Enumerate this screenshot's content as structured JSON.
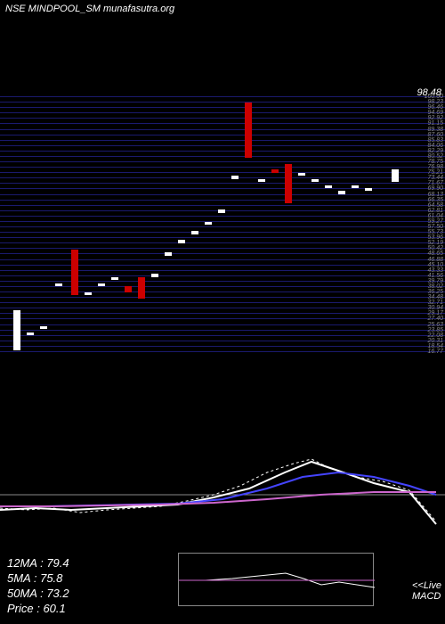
{
  "header": {
    "title": "NSE MINDPOOL_SM munafasutra.org"
  },
  "top_value": "98.48",
  "price_chart": {
    "type": "candlestick",
    "background_color": "#000000",
    "grid_color": "#1a1a6e",
    "grid_count": 48,
    "ylim": [
      15,
      100
    ],
    "candles": [
      {
        "x": 15,
        "open": 17,
        "close": 30,
        "color": "#ffffff"
      },
      {
        "x": 30,
        "open": 22,
        "close": 23,
        "color": "#ffffff"
      },
      {
        "x": 45,
        "open": 24,
        "close": 25,
        "color": "#ffffff"
      },
      {
        "x": 62,
        "open": 38,
        "close": 39,
        "color": "#ffffff"
      },
      {
        "x": 80,
        "open": 35,
        "close": 50,
        "color": "#cc0000"
      },
      {
        "x": 95,
        "open": 35,
        "close": 36,
        "color": "#ffffff"
      },
      {
        "x": 110,
        "open": 38,
        "close": 39,
        "color": "#ffffff"
      },
      {
        "x": 125,
        "open": 40,
        "close": 41,
        "color": "#ffffff"
      },
      {
        "x": 140,
        "open": 36,
        "close": 38,
        "color": "#cc0000"
      },
      {
        "x": 155,
        "open": 34,
        "close": 41,
        "color": "#cc0000"
      },
      {
        "x": 170,
        "open": 41,
        "close": 42,
        "color": "#ffffff"
      },
      {
        "x": 185,
        "open": 48,
        "close": 49,
        "color": "#ffffff"
      },
      {
        "x": 200,
        "open": 52,
        "close": 53,
        "color": "#ffffff"
      },
      {
        "x": 215,
        "open": 55,
        "close": 56,
        "color": "#ffffff"
      },
      {
        "x": 230,
        "open": 58,
        "close": 59,
        "color": "#ffffff"
      },
      {
        "x": 245,
        "open": 62,
        "close": 63,
        "color": "#ffffff"
      },
      {
        "x": 260,
        "open": 73,
        "close": 74,
        "color": "#ffffff"
      },
      {
        "x": 275,
        "open": 80,
        "close": 98,
        "color": "#cc0000"
      },
      {
        "x": 290,
        "open": 72,
        "close": 73,
        "color": "#ffffff"
      },
      {
        "x": 305,
        "open": 75,
        "close": 76,
        "color": "#cc0000"
      },
      {
        "x": 320,
        "open": 65,
        "close": 78,
        "color": "#cc0000"
      },
      {
        "x": 335,
        "open": 74,
        "close": 75,
        "color": "#ffffff"
      },
      {
        "x": 350,
        "open": 72,
        "close": 73,
        "color": "#ffffff"
      },
      {
        "x": 365,
        "open": 70,
        "close": 71,
        "color": "#ffffff"
      },
      {
        "x": 380,
        "open": 68,
        "close": 69,
        "color": "#ffffff"
      },
      {
        "x": 395,
        "open": 70,
        "close": 71,
        "color": "#ffffff"
      },
      {
        "x": 410,
        "open": 69,
        "close": 70,
        "color": "#ffffff"
      },
      {
        "x": 440,
        "open": 72,
        "close": 76,
        "color": "#ffffff"
      }
    ]
  },
  "ma_chart": {
    "type": "line",
    "hline_y": 55,
    "series": [
      {
        "name": "dotted",
        "color": "#ffffff",
        "dash": "3,3",
        "width": 1,
        "points": [
          [
            0,
            70
          ],
          [
            30,
            72
          ],
          [
            60,
            70
          ],
          [
            90,
            75
          ],
          [
            120,
            72
          ],
          [
            150,
            70
          ],
          [
            180,
            68
          ],
          [
            210,
            62
          ],
          [
            240,
            55
          ],
          [
            270,
            45
          ],
          [
            300,
            30
          ],
          [
            330,
            20
          ],
          [
            350,
            15
          ],
          [
            370,
            25
          ],
          [
            400,
            35
          ],
          [
            430,
            40
          ],
          [
            460,
            50
          ],
          [
            490,
            85
          ]
        ]
      },
      {
        "name": "white",
        "color": "#ffffff",
        "width": 2,
        "points": [
          [
            0,
            72
          ],
          [
            40,
            70
          ],
          [
            80,
            72
          ],
          [
            120,
            70
          ],
          [
            160,
            68
          ],
          [
            200,
            66
          ],
          [
            240,
            58
          ],
          [
            280,
            48
          ],
          [
            320,
            30
          ],
          [
            350,
            18
          ],
          [
            380,
            28
          ],
          [
            420,
            42
          ],
          [
            460,
            52
          ],
          [
            490,
            88
          ]
        ]
      },
      {
        "name": "blue",
        "color": "#4444ff",
        "width": 2,
        "points": [
          [
            0,
            68
          ],
          [
            50,
            68
          ],
          [
            100,
            67
          ],
          [
            150,
            66
          ],
          [
            200,
            65
          ],
          [
            250,
            60
          ],
          [
            300,
            48
          ],
          [
            340,
            35
          ],
          [
            380,
            30
          ],
          [
            420,
            35
          ],
          [
            460,
            45
          ],
          [
            490,
            55
          ]
        ]
      },
      {
        "name": "magenta",
        "color": "#cc66cc",
        "width": 2,
        "points": [
          [
            0,
            68
          ],
          [
            60,
            68
          ],
          [
            120,
            67
          ],
          [
            180,
            66
          ],
          [
            240,
            64
          ],
          [
            300,
            60
          ],
          [
            360,
            55
          ],
          [
            420,
            52
          ],
          [
            490,
            52
          ]
        ]
      }
    ]
  },
  "macd": {
    "type": "line",
    "series": [
      {
        "name": "macd-white",
        "color": "#ffffff",
        "width": 1,
        "points": [
          [
            0,
            30
          ],
          [
            30,
            30
          ],
          [
            60,
            28
          ],
          [
            90,
            25
          ],
          [
            120,
            22
          ],
          [
            140,
            28
          ],
          [
            160,
            35
          ],
          [
            180,
            32
          ],
          [
            200,
            35
          ],
          [
            220,
            38
          ]
        ]
      },
      {
        "name": "macd-magenta",
        "color": "#cc66cc",
        "width": 1,
        "points": [
          [
            0,
            30
          ],
          [
            40,
            30
          ],
          [
            80,
            30
          ],
          [
            120,
            30
          ],
          [
            160,
            30
          ],
          [
            200,
            30
          ],
          [
            220,
            30
          ]
        ]
      }
    ],
    "hline_y": 30
  },
  "stats": {
    "ma12": "12MA : 79.4",
    "ma5": "5MA : 75.8",
    "ma50": "50MA : 73.2",
    "price": "Price  : 60.1"
  },
  "macd_label": "<<Live\nMACD"
}
